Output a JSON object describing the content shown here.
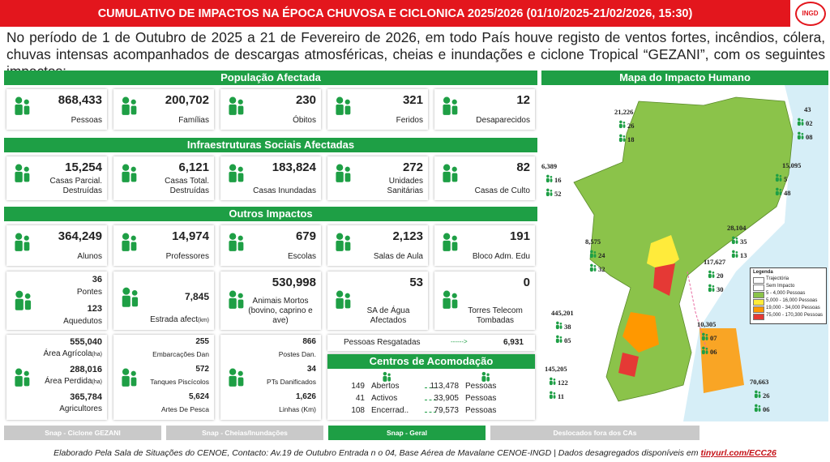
{
  "header": {
    "title": "CUMULATIVO DE IMPACTOS NA ÉPOCA CHUVOSA E CICLONICA 2025/2026 (01/10/2025-21/02/2026, 15:30)",
    "logo": "INGD",
    "intro": "No período de 1 de Outubro de 2025 a 21 de Fevereiro  de 2026, em todo País houve registo de ventos fortes, incêndios, cólera, chuvas intensas acompanhados de descargas atmosféricas, cheias e inundações e ciclone Tropical “GEZANI”,  com os seguintes impactos:"
  },
  "population": {
    "title": "População Afectada",
    "cards": [
      {
        "value": "868,433",
        "label": "Pessoas"
      },
      {
        "value": "200,702",
        "label": "Famílias"
      },
      {
        "value": "230",
        "label": "Óbitos"
      },
      {
        "value": "321",
        "label": "Feridos"
      },
      {
        "value": "12",
        "label": "Desaparecidos"
      }
    ]
  },
  "infrastructure": {
    "title": "Infraestruturas Sociais Afectadas",
    "cards": [
      {
        "value": "15,254",
        "label": "Casas Parcial. Destruídas"
      },
      {
        "value": "6,121",
        "label": "Casas Total. Destruídas"
      },
      {
        "value": "183,824",
        "label": "Casas Inundadas"
      },
      {
        "value": "272",
        "label": "Unidades Sanitárias"
      },
      {
        "value": "82",
        "label": "Casas de Culto"
      }
    ]
  },
  "other": {
    "title": "Outros Impactos",
    "row1": [
      {
        "value": "364,249",
        "label": "Alunos"
      },
      {
        "value": "14,974",
        "label": "Professores"
      },
      {
        "value": "679",
        "label": "Escolas"
      },
      {
        "value": "2,123",
        "label": "Salas de Aula"
      },
      {
        "value": "191",
        "label": "Bloco Adm. Edu"
      }
    ],
    "bridges": [
      {
        "value": "36",
        "label": "Pontes"
      },
      {
        "value": "123",
        "label": "Aquedutos"
      }
    ],
    "roads": {
      "value": "7,845",
      "label": "Estrada afect",
      "unit": "(km)"
    },
    "animals": {
      "value": "530,998",
      "label": "Animais Mortos (bovino, caprino e ave)"
    },
    "water": {
      "value": "53",
      "label": "SA de Água Afectados"
    },
    "telecom": {
      "value": "0",
      "label": "Torres Telecom Tombadas"
    },
    "agriculture": [
      {
        "value": "555,040",
        "label": "Área Agrícola",
        "unit": "(ha)"
      },
      {
        "value": "288,016",
        "label": "Área Perdida",
        "unit": "(ha)"
      },
      {
        "value": "365,784",
        "label": "Agricultores"
      }
    ],
    "fishing": [
      {
        "value": "255",
        "label": "Embarcações Dan"
      },
      {
        "value": "572",
        "label": "Tanques Piscícolos"
      },
      {
        "value": "5,624",
        "label": "Artes De Pesca"
      }
    ],
    "energy": [
      {
        "value": "866",
        "label": "Postes Dan."
      },
      {
        "value": "34",
        "label": "PTs Danificados"
      },
      {
        "value": "1,626",
        "label": "Linhas (Km)"
      }
    ],
    "rescue": {
      "label": "Pessoas Resgatadas",
      "arrow": "------>",
      "value": "6,931"
    },
    "centers": {
      "title": "Centros de Acomodação",
      "rows": [
        {
          "count": "149",
          "status": "Abertos",
          "people": "113,478",
          "unit": "Pessoas"
        },
        {
          "count": "41",
          "status": "Activos",
          "people": "33,905",
          "unit": "Pessoas"
        },
        {
          "count": "108",
          "status": "Encerrad..",
          "people": "79,573",
          "unit": "Pessoas"
        }
      ]
    }
  },
  "map": {
    "title": "Mapa do Impacto Humano",
    "legend": {
      "title": "Legenda",
      "items": [
        {
          "label": "Trajectória",
          "color": "#e86aa0"
        },
        {
          "label": "Sem Impacto",
          "color": "#ffffff"
        },
        {
          "label": "5 - 4,000 Pessoas",
          "color": "#8bc34a"
        },
        {
          "label": "5,000 - 16,000 Pessoas",
          "color": "#ffeb3b"
        },
        {
          "label": "19,000 - 34,000 Pessoas",
          "color": "#ff9800"
        },
        {
          "label": "75,000 - 170,300 Pessoas",
          "color": "#e53935"
        }
      ]
    },
    "areas": [
      [
        "21,226",
        "26",
        "18"
      ],
      [
        "43",
        "02",
        "08"
      ],
      [
        "6,389",
        "16",
        "52"
      ],
      [
        "15,095",
        "5",
        "48"
      ],
      [
        "28,104",
        "35",
        "13"
      ],
      [
        "8,575",
        "24",
        "32"
      ],
      [
        "117,627",
        "20",
        "30"
      ],
      [
        "445,201",
        "38",
        "05"
      ],
      [
        "10,305",
        "07",
        "06"
      ],
      [
        "145,205",
        "122",
        "11"
      ],
      [
        "70,663",
        "26",
        "06"
      ]
    ]
  },
  "tabs": {
    "items": [
      "Snap - Ciclone GEZANI",
      "Snap - Cheias/Inundações",
      "Snap - Geral",
      "Deslocados fora dos CAs"
    ],
    "active": 2
  },
  "footer": {
    "text": "Elaborado Pela Sala de Situações do CENOE, Contacto: Av.19 de Outubro Entrada n o 04, Base Aérea de Mavalane CENOE-INGD | Dados desagregados disponíveis em",
    "link": "tinyurl.com/ECC26"
  }
}
